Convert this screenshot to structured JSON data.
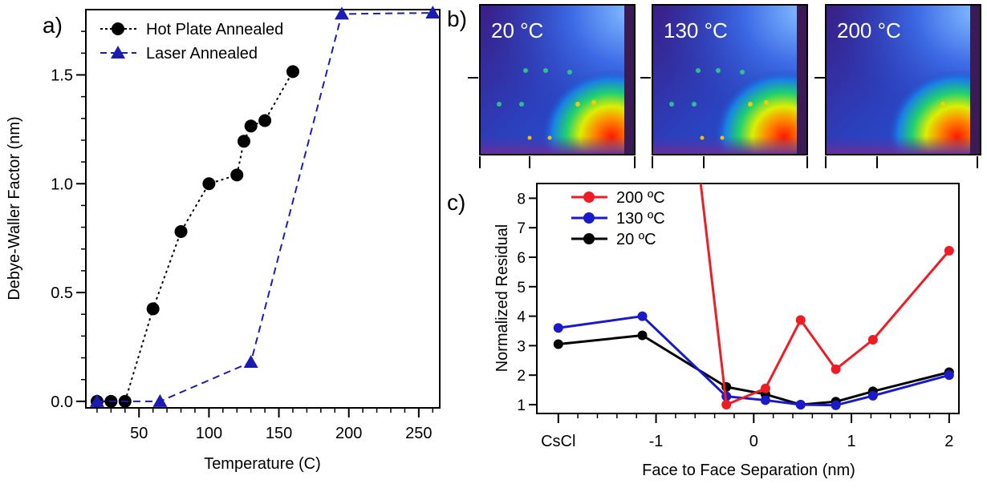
{
  "panel_labels": {
    "a": "a)",
    "b": "b)",
    "c": "c)"
  },
  "chart_data": [
    {
      "type": "line",
      "panel": "a",
      "xlabel": "Temperature (C)",
      "ylabel": "Debye-Waller Factor (nm)",
      "xlim": [
        12,
        265
      ],
      "ylim": [
        -0.03,
        1.8
      ],
      "xticks": [
        50,
        100,
        150,
        200,
        250
      ],
      "xtick_labels": [
        "50",
        "100",
        "150",
        "200",
        "250"
      ],
      "yticks": [
        0.0,
        0.5,
        1.0,
        1.5
      ],
      "ytick_labels": [
        "0.0",
        "0.5",
        "1.0",
        "1.5"
      ],
      "legend_placement": "top-left",
      "grid": false,
      "series": [
        {
          "name": "Hot Plate Annealed",
          "marker": "circle",
          "line_style": "dotted",
          "color": "#000000",
          "x": [
            20,
            30,
            40,
            60,
            80,
            100,
            120,
            125,
            130,
            140,
            160
          ],
          "y": [
            0.0,
            0.0,
            0.0,
            0.425,
            0.78,
            1.0,
            1.04,
            1.195,
            1.265,
            1.29,
            1.515
          ]
        },
        {
          "name": "Laser Annealed",
          "marker": "triangle",
          "line_style": "dashed",
          "color": "#1c1cb4",
          "x": [
            20,
            65,
            130,
            195,
            260
          ],
          "y": [
            0.0,
            0.0,
            0.18,
            1.78,
            1.785
          ]
        }
      ]
    },
    {
      "type": "heatmap",
      "panel": "b",
      "images": [
        {
          "title": "20 °C"
        },
        {
          "title": "130 °C"
        },
        {
          "title": "200 °C"
        }
      ]
    },
    {
      "type": "line",
      "panel": "c",
      "xlabel": "Face to Face Separation (nm)",
      "ylabel": "Normalized Residual",
      "xlim": [
        -2.22,
        2.1
      ],
      "ylim": [
        0.7,
        8.5
      ],
      "xticks": [
        -2,
        -1,
        0,
        1,
        2
      ],
      "xtick_labels": [
        "CsCl",
        "-1",
        "0",
        "1",
        "2"
      ],
      "yticks": [
        1,
        2,
        3,
        4,
        5,
        6,
        7,
        8
      ],
      "ytick_labels": [
        "1",
        "2",
        "3",
        "4",
        "5",
        "6",
        "7",
        "8"
      ],
      "legend_placement": "top-left",
      "grid": false,
      "series": [
        {
          "name": "200 ºC",
          "color": "#ee1c24",
          "x": [
            -0.28,
            0.12,
            0.48,
            0.84,
            1.22,
            2.0
          ],
          "y": [
            1.0,
            1.55,
            3.87,
            2.2,
            3.2,
            6.22
          ],
          "offscale_start": {
            "x": -0.55,
            "y": 8.7
          }
        },
        {
          "name": "130 ºC",
          "color": "#1a1acb",
          "x": [
            -2.0,
            -1.14,
            -0.28,
            0.12,
            0.48,
            0.84,
            1.22,
            2.0
          ],
          "y": [
            3.6,
            4.0,
            1.28,
            1.15,
            1.0,
            0.98,
            1.3,
            2.0
          ]
        },
        {
          "name": "20 ºC",
          "color": "#000000",
          "x": [
            -2.0,
            -1.14,
            -0.28,
            0.12,
            0.48,
            0.84,
            1.22,
            2.0
          ],
          "y": [
            3.05,
            3.35,
            1.6,
            1.35,
            1.0,
            1.1,
            1.45,
            2.1
          ]
        }
      ]
    }
  ]
}
